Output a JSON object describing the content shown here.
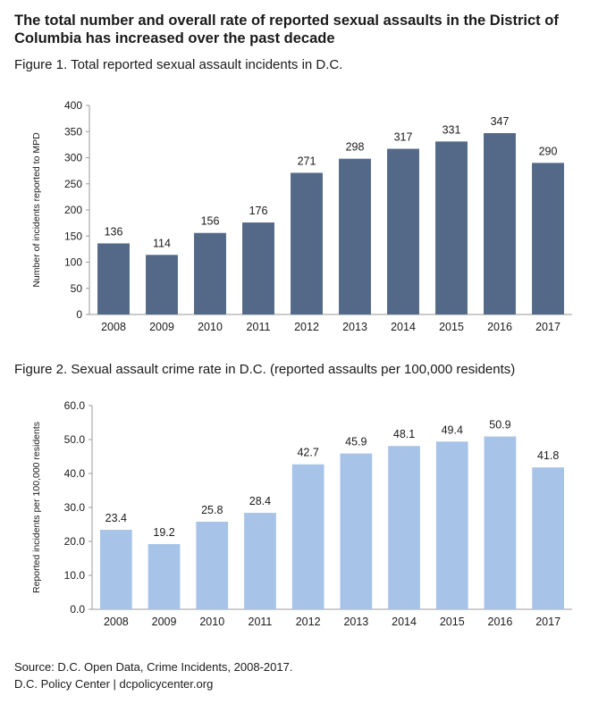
{
  "headline": "The total number and overall rate of reported sexual assaults in the District of Columbia has increased over the past decade",
  "figures": {
    "fig1_title": "Figure 1. Total reported sexual assault incidents in D.C.",
    "fig2_title": "Figure 2. Sexual assault crime rate in D.C.  (reported assaults per 100,000 residents)"
  },
  "footer": {
    "source": "Source: D.C. Open Data, Crime Incidents, 2008-2017.",
    "credit": "D.C. Policy Center  |  dcpolicycenter.org"
  },
  "colors": {
    "fig1_bar": "#536987",
    "fig2_bar": "#a7c3e7",
    "axis": "#9a9a9a"
  },
  "chart_data": [
    {
      "type": "bar",
      "title": "Figure 1. Total reported sexual assault incidents in D.C.",
      "categories": [
        "2008",
        "2009",
        "2010",
        "2011",
        "2012",
        "2013",
        "2014",
        "2015",
        "2016",
        "2017"
      ],
      "values": [
        136,
        114,
        156,
        176,
        271,
        298,
        317,
        331,
        347,
        290
      ],
      "value_labels": [
        "136",
        "114",
        "156",
        "176",
        "271",
        "298",
        "317",
        "331",
        "347",
        "290"
      ],
      "xlabel": "",
      "ylabel": "Number of incidents reported to MPD",
      "ylim": [
        0,
        400
      ],
      "yticks": [
        0,
        50,
        100,
        150,
        200,
        250,
        300,
        350,
        400
      ],
      "ytick_labels": [
        "0",
        "50",
        "100",
        "150",
        "200",
        "250",
        "300",
        "350",
        "400"
      ],
      "grid": false,
      "legend": "none"
    },
    {
      "type": "bar",
      "title": "Figure 2. Sexual assault crime rate in D.C.  (reported assaults per 100,000 residents)",
      "categories": [
        "2008",
        "2009",
        "2010",
        "2011",
        "2012",
        "2013",
        "2014",
        "2015",
        "2016",
        "2017"
      ],
      "values": [
        23.4,
        19.2,
        25.8,
        28.4,
        42.7,
        45.9,
        48.1,
        49.4,
        50.9,
        41.8
      ],
      "value_labels": [
        "23.4",
        "19.2",
        "25.8",
        "28.4",
        "42.7",
        "45.9",
        "48.1",
        "49.4",
        "50.9",
        "41.8"
      ],
      "xlabel": "",
      "ylabel": "Reported incidents per 100,000 residents",
      "ylim": [
        0,
        60
      ],
      "yticks": [
        0,
        10,
        20,
        30,
        40,
        50,
        60
      ],
      "ytick_labels": [
        "0.0",
        "10.0",
        "20.0",
        "30.0",
        "40.0",
        "50.0",
        "60.0"
      ],
      "grid": false,
      "legend": "none"
    }
  ]
}
